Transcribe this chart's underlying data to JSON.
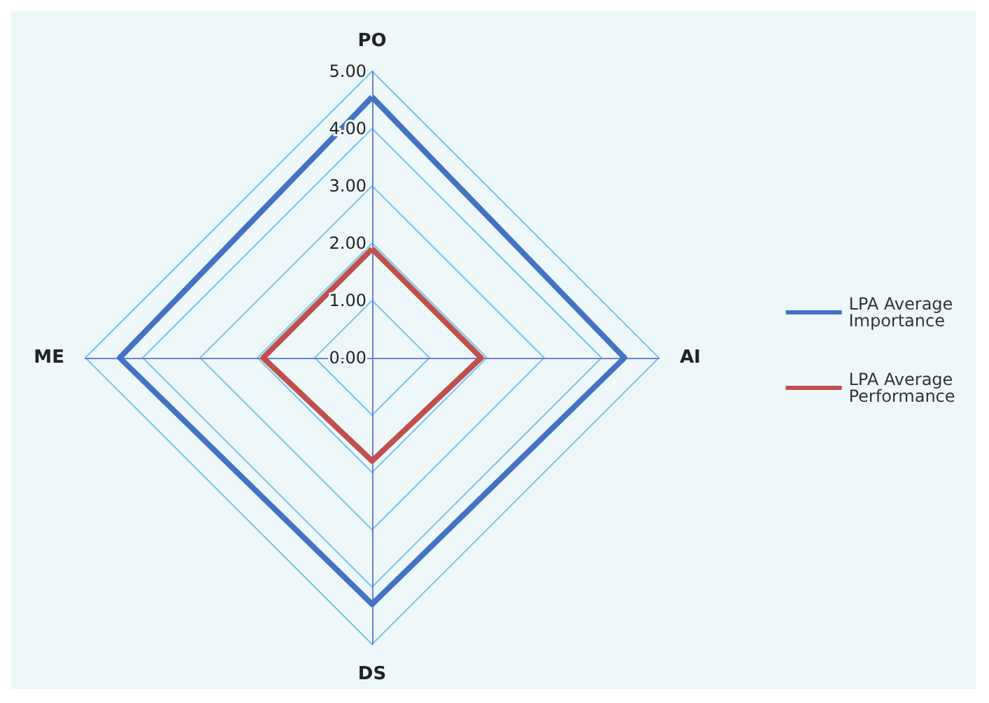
{
  "chart_data": {
    "type": "radar",
    "categories": [
      "PO",
      "AI",
      "DS",
      "ME"
    ],
    "series": [
      {
        "name": "LPA Average Importance",
        "color": "#4472c4",
        "values": [
          4.55,
          4.4,
          4.3,
          4.4
        ]
      },
      {
        "name": "LPA Average Performance",
        "color": "#c0504d",
        "values": [
          1.9,
          1.9,
          1.8,
          1.9
        ]
      }
    ],
    "ylim": [
      0,
      5
    ],
    "yticks": [
      {
        "value": 0,
        "label": "0.00"
      },
      {
        "value": 1,
        "label": "1.00"
      },
      {
        "value": 2,
        "label": "2.00"
      },
      {
        "value": 3,
        "label": "3.00"
      },
      {
        "value": 4,
        "label": "4.00"
      },
      {
        "value": 5,
        "label": "5.00"
      }
    ],
    "grid": true,
    "legend": "right",
    "marker": "none",
    "line_style": "solid"
  }
}
